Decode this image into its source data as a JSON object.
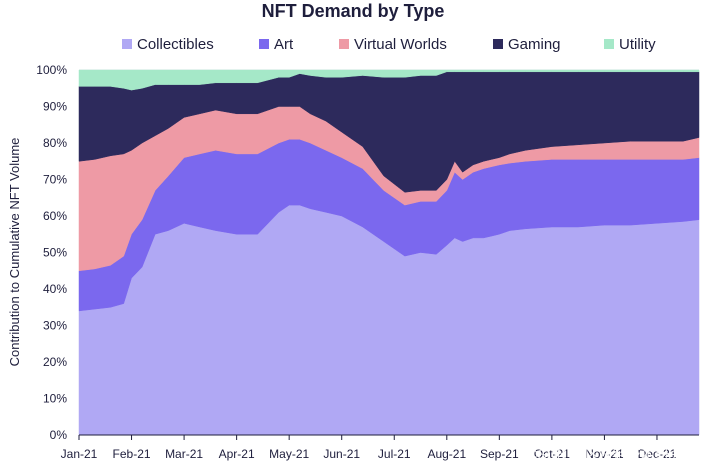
{
  "chart_data": {
    "type": "area",
    "stacked": true,
    "normalized": true,
    "title": "NFT Demand by Type",
    "xlabel": "",
    "ylabel": "Contribution to Cumulative NFT Volume",
    "ylim": [
      0,
      100
    ],
    "yticks": [
      "0%",
      "10%",
      "20%",
      "30%",
      "40%",
      "50%",
      "60%",
      "70%",
      "80%",
      "90%",
      "100%"
    ],
    "xticks": [
      "Jan-21",
      "Feb-21",
      "Mar-21",
      "Apr-21",
      "May-21",
      "Jun-21",
      "Jul-21",
      "Aug-21",
      "Sep-21",
      "Oct-21",
      "Nov-21",
      "Dec-21"
    ],
    "x": [
      0,
      0.3,
      0.6,
      0.85,
      1.0,
      1.2,
      1.45,
      1.7,
      2.0,
      2.3,
      2.6,
      3.0,
      3.4,
      3.8,
      4.0,
      4.2,
      4.4,
      4.7,
      5.0,
      5.4,
      5.8,
      6.2,
      6.5,
      6.8,
      7.0,
      7.15,
      7.3,
      7.5,
      7.7,
      7.85,
      8.0,
      8.2,
      8.5,
      9.0,
      9.5,
      10.0,
      10.5,
      11.0,
      11.5,
      11.8
    ],
    "legend_position": "top",
    "series": [
      {
        "name": "Collectibles",
        "color": "#b0a8f4",
        "values": [
          34,
          34.5,
          35,
          36,
          43,
          46,
          55,
          56,
          58,
          57,
          56,
          55,
          55,
          61,
          63,
          63,
          62,
          61,
          60,
          57,
          53,
          49,
          50,
          49.5,
          52,
          54,
          53,
          54,
          54,
          54.5,
          55,
          56,
          56.5,
          57,
          57,
          57.5,
          57.5,
          58,
          58.5,
          59
        ]
      },
      {
        "name": "Art",
        "color": "#7b68ee",
        "values": [
          11,
          11,
          11.5,
          13,
          12,
          13,
          12,
          15,
          18,
          20,
          22,
          22,
          22,
          19,
          18,
          18,
          18,
          17,
          16,
          16,
          14,
          14,
          14,
          14.5,
          15,
          18,
          17,
          18,
          19,
          19,
          19,
          18.5,
          18.5,
          18.5,
          18.5,
          18,
          18,
          17.5,
          17,
          17
        ]
      },
      {
        "name": "Virtual Worlds",
        "color": "#ee9aa5",
        "values": [
          30,
          30,
          30,
          28,
          23,
          21,
          15,
          13,
          11,
          11,
          11,
          11,
          11,
          10,
          9,
          9,
          8,
          8,
          7,
          6,
          4,
          3.5,
          3,
          3,
          3,
          3,
          2,
          2,
          2,
          2,
          2,
          2.5,
          3,
          3.5,
          4,
          4.5,
          5,
          5,
          5,
          5.5
        ]
      },
      {
        "name": "Gaming",
        "color": "#2d2a5c",
        "values": [
          20.5,
          20,
          19,
          18,
          16.5,
          15,
          14,
          12,
          9,
          8,
          7.5,
          8.5,
          8.5,
          8,
          8,
          9,
          10.5,
          12,
          15,
          19.5,
          27,
          31.5,
          31.5,
          31.5,
          29.5,
          24.5,
          27.5,
          25.5,
          24.5,
          24,
          23.5,
          22.5,
          21.5,
          20.5,
          20,
          19.5,
          19,
          19,
          19,
          18
        ]
      },
      {
        "name": "Utility",
        "color": "#a5e8c8",
        "values": [
          4.5,
          4.5,
          4.5,
          5,
          5.5,
          5,
          4,
          4,
          4,
          4,
          3.5,
          3.5,
          3.5,
          2,
          2,
          1,
          1.5,
          2,
          2,
          1.5,
          2,
          2,
          1.5,
          1.5,
          0.5,
          0.5,
          0.5,
          0.5,
          0.5,
          0.5,
          0.5,
          0.5,
          0.5,
          0.5,
          0.5,
          0.5,
          0.5,
          0.5,
          0.5,
          0.5
        ]
      }
    ]
  },
  "watermark": "CSDN @区块链技术研究员"
}
